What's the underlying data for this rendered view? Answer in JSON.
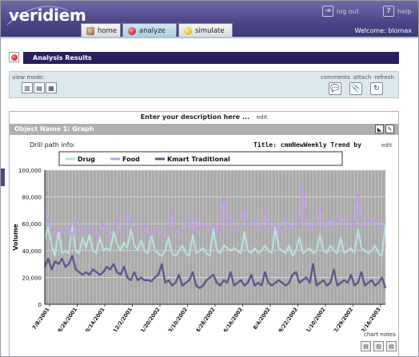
{
  "app": {
    "logo": "veridiem"
  },
  "top_links": {
    "logout": "log out",
    "help": "help"
  },
  "tabs": [
    {
      "label": "home"
    },
    {
      "label": "analyze"
    },
    {
      "label": "simulate"
    }
  ],
  "welcome": "Welcome: blomax",
  "analysis_bar": {
    "title": "Analysis Results"
  },
  "view_mode": {
    "label": "view mode:"
  },
  "actions": {
    "comments": "comments",
    "attach": "attach",
    "refresh": "refresh"
  },
  "description": {
    "text": "Enter your description here ...",
    "edit": "edit"
  },
  "object": {
    "title": "Object Name 1: Graph"
  },
  "drill": {
    "label": "Drill path info:"
  },
  "chart_title_area": {
    "prefix": "Title:",
    "title": "cmmNewWeekly Trend by",
    "edit": "edit"
  },
  "footer": {
    "chart_notes": "chart notes"
  },
  "colors": {
    "accent": "#4d4788",
    "drug": "#b7e3e0",
    "food": "#c39be8",
    "kmart": "#5b5a8c"
  },
  "chart_data": {
    "type": "line",
    "title": "cmmNewWeekly Trend by",
    "ylabel": "Volume",
    "xlabel": "",
    "ylim": [
      0,
      100000
    ],
    "yticks": [
      "0",
      "20,000",
      "40,000",
      "60,000",
      "80,000",
      "100,000"
    ],
    "xtick_labels": [
      "7/8/2001",
      "8/26/2001",
      "10/14/2001",
      "12/2/2001",
      "1/20/2002",
      "3/10/2002",
      "4/28/2002",
      "6/16/2002",
      "8/4/2002",
      "9/22/2002",
      "11/10/2002",
      "12/29/2002",
      "2/16/2003"
    ],
    "legend_position": "top",
    "series": [
      {
        "name": "Drug",
        "values": [
          48000,
          58000,
          44000,
          36000,
          56000,
          38000,
          40000,
          38000,
          58000,
          40000,
          38000,
          50000,
          42000,
          52000,
          40000,
          38000,
          50000,
          40000,
          42000,
          40000,
          54000,
          45000,
          40000,
          46000,
          42000,
          56000,
          44000,
          40000,
          48000,
          40000,
          38000,
          52000,
          40000,
          38000,
          36000,
          40000,
          50000,
          38000,
          36000,
          40000,
          44000,
          38000,
          36000,
          52000,
          38000,
          40000,
          42000,
          38000,
          36000,
          56000,
          40000,
          38000,
          44000,
          42000,
          40000,
          42000,
          40000,
          38000,
          54000,
          40000,
          38000,
          42000,
          38000,
          40000,
          44000,
          40000,
          38000,
          58000,
          42000,
          40000,
          38000,
          44000,
          36000,
          40000,
          50000,
          38000,
          40000,
          42000,
          38000,
          40000,
          52000,
          40000,
          38000,
          44000,
          40000,
          38000,
          50000,
          38000,
          40000,
          42000,
          38000,
          56000,
          42000,
          40000,
          38000,
          40000,
          44000,
          38000,
          36000,
          60000
        ]
      },
      {
        "name": "Food",
        "values": [
          72000,
          62000,
          55000,
          50000,
          56000,
          52000,
          55000,
          58000,
          50000,
          60000,
          62000,
          52000,
          55000,
          58000,
          56000,
          50000,
          54000,
          60000,
          52000,
          50000,
          58000,
          64000,
          52000,
          56000,
          68000,
          60000,
          56000,
          55000,
          58000,
          60000,
          50000,
          52000,
          56000,
          54000,
          52000,
          50000,
          54000,
          70000,
          56000,
          52000,
          54000,
          60000,
          62000,
          54000,
          66000,
          56000,
          60000,
          58000,
          54000,
          60000,
          52000,
          56000,
          80000,
          58000,
          62000,
          56000,
          54000,
          58000,
          74000,
          60000,
          58000,
          62000,
          56000,
          54000,
          70000,
          58000,
          56000,
          60000,
          52000,
          56000,
          64000,
          58000,
          56000,
          62000,
          58000,
          88000,
          64000,
          56000,
          60000,
          58000,
          72000,
          56000,
          60000,
          64000,
          58000,
          62000,
          68000,
          56000,
          58000,
          62000,
          58000,
          82000,
          60000,
          58000,
          62000,
          60000,
          64000,
          58000,
          56000,
          62000
        ]
      },
      {
        "name": "Kmart Traditional",
        "values": [
          28000,
          34000,
          26000,
          32000,
          30000,
          34000,
          28000,
          30000,
          36000,
          26000,
          24000,
          22000,
          24000,
          22000,
          26000,
          24000,
          22000,
          24000,
          28000,
          26000,
          30000,
          24000,
          22000,
          28000,
          20000,
          18000,
          24000,
          18000,
          20000,
          18000,
          18000,
          17000,
          20000,
          22000,
          30000,
          16000,
          18000,
          14000,
          16000,
          22000,
          14000,
          16000,
          18000,
          24000,
          14000,
          12000,
          14000,
          18000,
          20000,
          22000,
          16000,
          14000,
          18000,
          16000,
          24000,
          14000,
          16000,
          18000,
          14000,
          16000,
          22000,
          14000,
          16000,
          14000,
          24000,
          16000,
          14000,
          16000,
          18000,
          16000,
          14000,
          16000,
          22000,
          24000,
          16000,
          18000,
          20000,
          16000,
          30000,
          14000,
          16000,
          18000,
          14000,
          16000,
          26000,
          14000,
          16000,
          18000,
          16000,
          22000,
          14000,
          16000,
          24000,
          14000,
          16000,
          18000,
          14000,
          16000,
          20000,
          12000
        ]
      }
    ]
  }
}
